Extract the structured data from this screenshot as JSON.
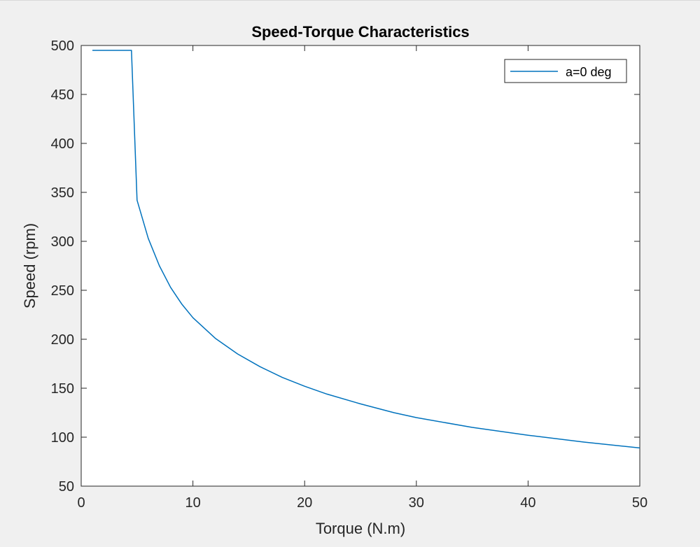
{
  "chart_data": {
    "type": "line",
    "title": "Speed-Torque Characteristics",
    "xlabel": "Torque (N.m)",
    "ylabel": "Speed (rpm)",
    "xlim": [
      0,
      50
    ],
    "ylim": [
      50,
      500
    ],
    "xticks": [
      0,
      10,
      20,
      30,
      40,
      50
    ],
    "yticks": [
      50,
      100,
      150,
      200,
      250,
      300,
      350,
      400,
      450,
      500
    ],
    "grid": false,
    "legend_position": "top-right",
    "series": [
      {
        "name": "a=0 deg",
        "color": "#0072bd",
        "x": [
          1,
          4.5,
          5,
          6,
          7,
          8,
          9,
          10,
          12,
          14,
          16,
          18,
          20,
          22,
          25,
          28,
          30,
          35,
          40,
          45,
          50
        ],
        "y": [
          495,
          495,
          342,
          303,
          275,
          253,
          236,
          222,
          201,
          185,
          172,
          161,
          152,
          144,
          134,
          125,
          120,
          110,
          102,
          95,
          89
        ]
      }
    ]
  }
}
